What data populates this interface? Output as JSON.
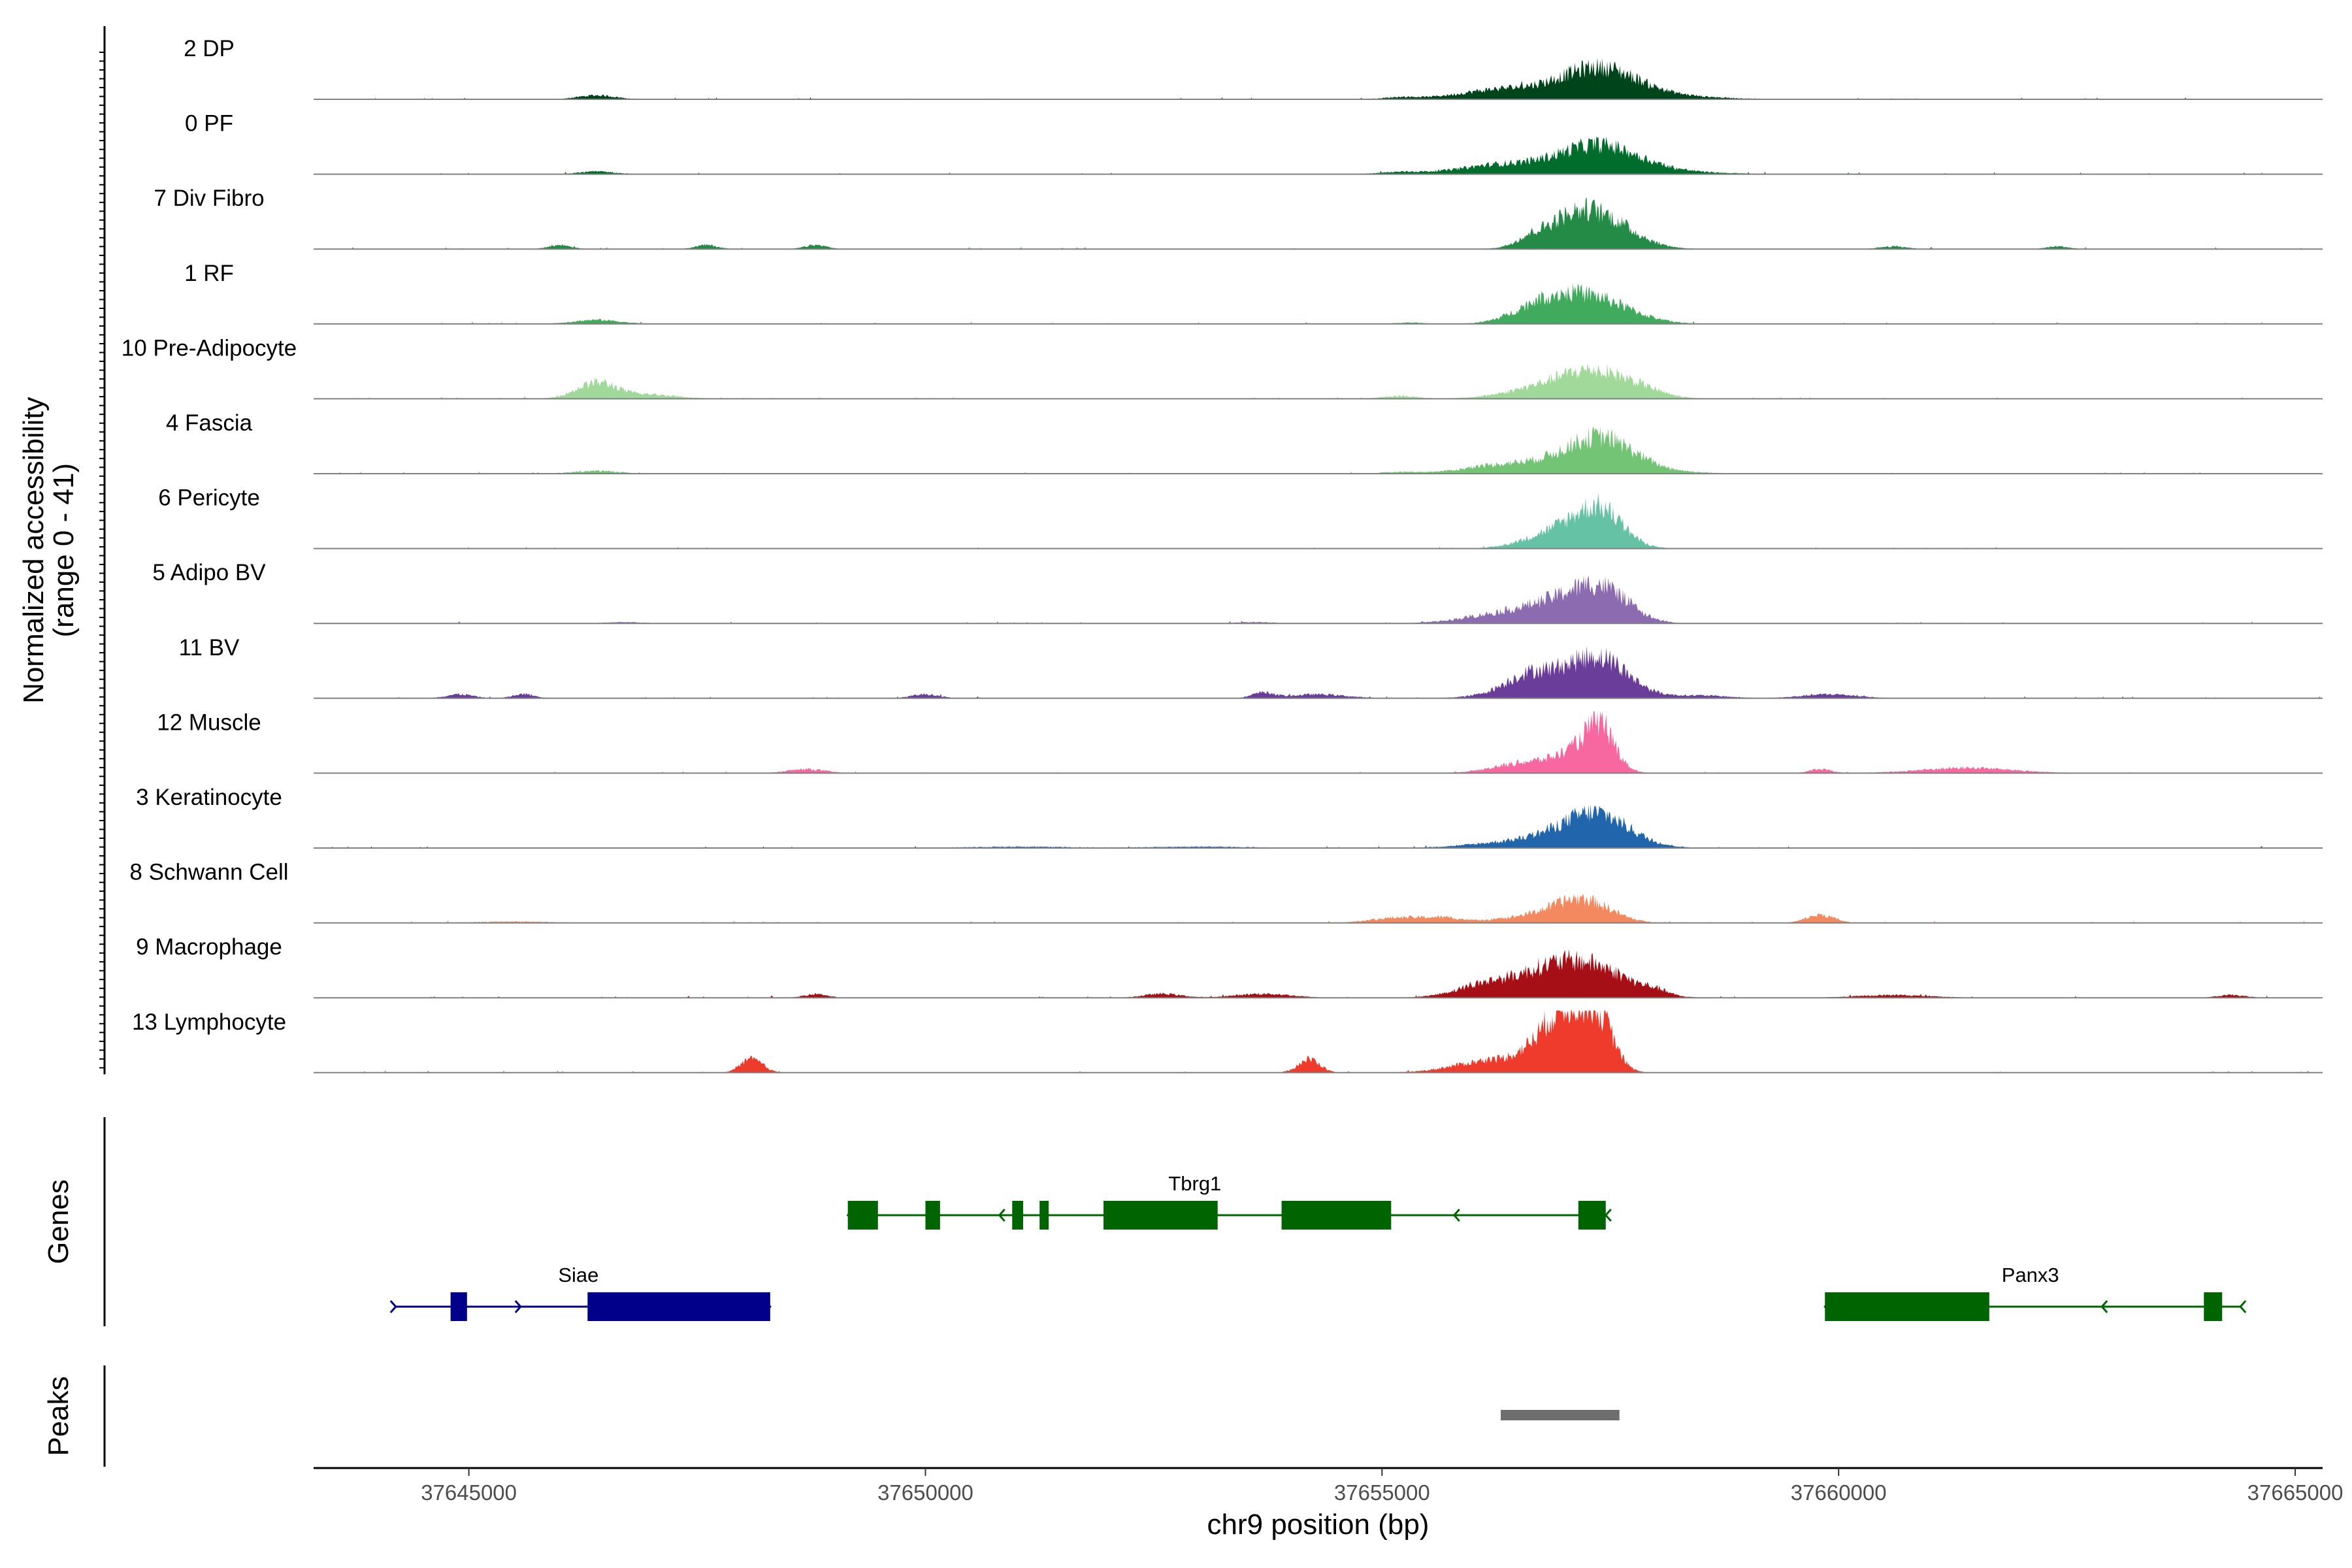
{
  "chart_data": {
    "type": "area",
    "title": "",
    "ylabel": "Normalized accessibility",
    "ylabel_sub": "(range 0 - 41)",
    "ylim": [
      0,
      41
    ],
    "xlabel": "chr9 position (bp)",
    "xlim": [
      37643300,
      37665300
    ],
    "xticks": [
      37645000,
      37650000,
      37655000,
      37660000,
      37665000
    ],
    "xtick_labels": [
      "37645000",
      "37650000",
      "37655000",
      "37660000",
      "37665000"
    ],
    "series": [
      {
        "name": "2 DP",
        "color": "#00441b",
        "peaks": [
          [
            37646400,
            3,
            200
          ],
          [
            37657050,
            9,
            850
          ],
          [
            37657400,
            16,
            380
          ],
          [
            37656200,
            2,
            300
          ],
          [
            37655200,
            1,
            150
          ]
        ]
      },
      {
        "name": "0 PF",
        "color": "#006d2c",
        "peaks": [
          [
            37646400,
            2,
            200
          ],
          [
            37657000,
            8,
            850
          ],
          [
            37657400,
            15,
            400
          ],
          [
            37656200,
            2,
            300
          ],
          [
            37655200,
            1,
            200
          ]
        ]
      },
      {
        "name": "7 Div Fibro",
        "color": "#238b45",
        "peaks": [
          [
            37646000,
            3,
            120
          ],
          [
            37647600,
            3,
            120
          ],
          [
            37648800,
            3,
            120
          ],
          [
            37656600,
            4,
            150
          ],
          [
            37657000,
            14,
            300
          ],
          [
            37657400,
            22,
            350
          ],
          [
            37660600,
            2,
            150
          ],
          [
            37662400,
            2,
            120
          ]
        ]
      },
      {
        "name": "1 RF",
        "color": "#41ab5d",
        "peaks": [
          [
            37646400,
            3,
            250
          ],
          [
            37656700,
            9,
            300
          ],
          [
            37657000,
            7,
            350
          ],
          [
            37657350,
            16,
            400
          ],
          [
            37655300,
            1,
            150
          ]
        ]
      },
      {
        "name": "10 Pre-Adipocyte",
        "color": "#a1d99b",
        "peaks": [
          [
            37646400,
            12,
            220
          ],
          [
            37647000,
            3,
            300
          ],
          [
            37657350,
            20,
            400
          ],
          [
            37656700,
            6,
            400
          ],
          [
            37655200,
            2,
            200
          ],
          [
            37657900,
            2,
            200
          ]
        ]
      },
      {
        "name": "4 Fascia",
        "color": "#74c476",
        "peaks": [
          [
            37646400,
            2,
            250
          ],
          [
            37657000,
            9,
            700
          ],
          [
            37657400,
            20,
            350
          ],
          [
            37656200,
            2,
            300
          ],
          [
            37655200,
            1,
            200
          ]
        ]
      },
      {
        "name": "6 Pericyte",
        "color": "#66c2a4",
        "peaks": [
          [
            37656800,
            8,
            300
          ],
          [
            37657150,
            9,
            300
          ],
          [
            37657400,
            24,
            250
          ]
        ]
      },
      {
        "name": "5 Adipo BV",
        "color": "#8c6bb1",
        "peaks": [
          [
            37656400,
            8,
            450
          ],
          [
            37656900,
            10,
            300
          ],
          [
            37657400,
            26,
            300
          ],
          [
            37646700,
            1,
            200
          ],
          [
            37653600,
            1,
            200
          ]
        ]
      },
      {
        "name": "11 BV",
        "color": "#6a3d9a",
        "peaks": [
          [
            37644900,
            3,
            150
          ],
          [
            37645600,
            3,
            120
          ],
          [
            37650000,
            3,
            150
          ],
          [
            37653700,
            4,
            120
          ],
          [
            37654300,
            3,
            300
          ],
          [
            37656600,
            9,
            250
          ],
          [
            37657000,
            14,
            500
          ],
          [
            37657400,
            21,
            300
          ],
          [
            37658500,
            2,
            300
          ],
          [
            37659900,
            3,
            300
          ]
        ]
      },
      {
        "name": "12 Muscle",
        "color": "#f768a1",
        "peaks": [
          [
            37648700,
            3,
            200
          ],
          [
            37656600,
            8,
            350
          ],
          [
            37657200,
            16,
            250
          ],
          [
            37657400,
            26,
            150
          ],
          [
            37659800,
            3,
            120
          ],
          [
            37661400,
            4,
            500
          ]
        ]
      },
      {
        "name": "3 Keratinocyte",
        "color": "#2166ac",
        "peaks": [
          [
            37656800,
            7,
            600
          ],
          [
            37657350,
            22,
            350
          ],
          [
            37653000,
            1,
            600
          ],
          [
            37651000,
            1,
            600
          ]
        ]
      },
      {
        "name": "8 Schwann Cell",
        "color": "#f4895f",
        "peaks": [
          [
            37655200,
            4,
            300
          ],
          [
            37655700,
            3,
            200
          ],
          [
            37656700,
            5,
            400
          ],
          [
            37657200,
            16,
            300
          ],
          [
            37659800,
            6,
            150
          ],
          [
            37645500,
            1,
            400
          ]
        ]
      },
      {
        "name": "9 Macrophage",
        "color": "#a50f15",
        "peaks": [
          [
            37656200,
            11,
            350
          ],
          [
            37656800,
            12,
            300
          ],
          [
            37657300,
            23,
            400
          ],
          [
            37658000,
            3,
            120
          ],
          [
            37648800,
            3,
            120
          ],
          [
            37652600,
            3,
            200
          ],
          [
            37653700,
            3,
            300
          ],
          [
            37660600,
            2,
            400
          ],
          [
            37664300,
            2,
            150
          ]
        ]
      },
      {
        "name": "13 Lymphocyte",
        "color": "#ef3b2c",
        "peaks": [
          [
            37648100,
            10,
            120
          ],
          [
            37654200,
            10,
            120
          ],
          [
            37656200,
            9,
            400
          ],
          [
            37656800,
            15,
            250
          ],
          [
            37657100,
            41,
            250
          ],
          [
            37657400,
            25,
            150
          ]
        ]
      }
    ],
    "genes": [
      {
        "name": "Tbrg1",
        "strand": "-",
        "start": 37649150,
        "end": 37657450,
        "color": "#006400",
        "exons": [
          [
            37649150,
            37649480
          ],
          [
            37650000,
            37650160
          ],
          [
            37650950,
            37651070
          ],
          [
            37651250,
            37651350
          ],
          [
            37651950,
            37653200
          ],
          [
            37653900,
            37655100
          ],
          [
            37657150,
            37657450
          ]
        ]
      },
      {
        "name": "Siae",
        "strand": "+",
        "start": 37644200,
        "end": 37648300,
        "color": "#00008b",
        "exons": [
          [
            37644800,
            37644980
          ],
          [
            37646300,
            37648300
          ]
        ]
      },
      {
        "name": "Panx3",
        "strand": "-",
        "start": 37659850,
        "end": 37664400,
        "color": "#006400",
        "exons": [
          [
            37659850,
            37661650
          ],
          [
            37664000,
            37664200
          ]
        ]
      }
    ],
    "genes_label": "Genes",
    "peaks_label": "Peaks",
    "peak_regions": [
      [
        37656300,
        37657600
      ]
    ],
    "peak_color": "#6e6e6e"
  }
}
